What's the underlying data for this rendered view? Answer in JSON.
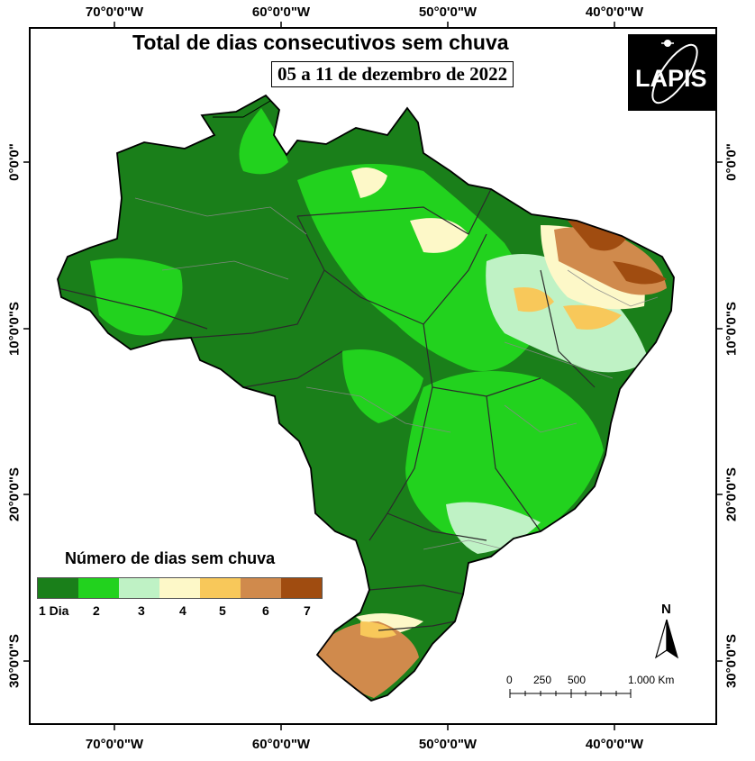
{
  "map": {
    "title": "Total de dias consecutivos sem chuva",
    "subtitle": "05 a 11 de dezembro de 2022",
    "logo_text": "LAPIS",
    "grid": {
      "longitude_labels": [
        "70°0'0\"W",
        "60°0'0\"W",
        "50°0'0\"W",
        "40°0'0\"W"
      ],
      "latitude_labels": [
        "0°0'0\"",
        "10°0'0\"S",
        "20°0'0\"S",
        "30°0'0\"S"
      ]
    },
    "legend": {
      "title": "Número de dias sem chuva",
      "classes": [
        {
          "label": "1 Dia",
          "color": "#1a7f1a"
        },
        {
          "label": "2",
          "color": "#22d21e"
        },
        {
          "label": "3",
          "color": "#bff2c5"
        },
        {
          "label": "4",
          "color": "#fdf8c8"
        },
        {
          "label": "5",
          "color": "#f8c85a"
        },
        {
          "label": "6",
          "color": "#d08a4c"
        },
        {
          "label": "7",
          "color": "#a04c10"
        }
      ]
    },
    "scale_bar": {
      "labels": [
        "0",
        "250",
        "500",
        "1.000 Km"
      ]
    },
    "north_arrow": {
      "label": "N"
    }
  }
}
